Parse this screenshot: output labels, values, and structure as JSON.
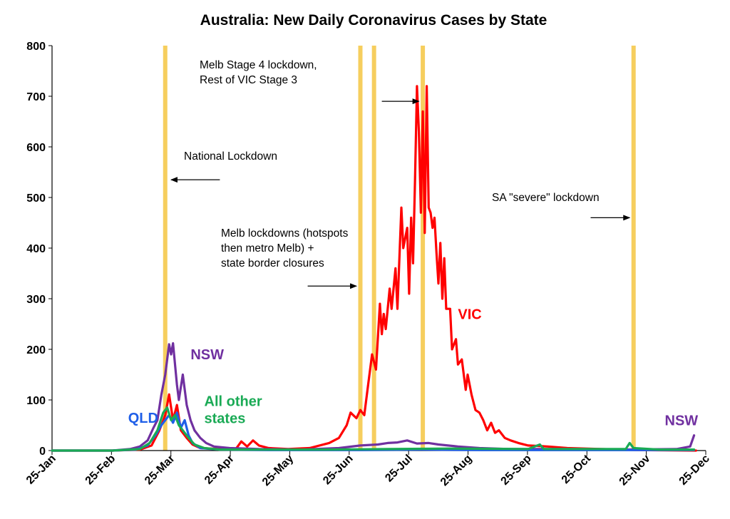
{
  "chart_data": {
    "type": "line",
    "title": "Australia: New Daily Coronavirus Cases by State",
    "ylim": [
      0,
      800
    ],
    "yticks": [
      "0",
      "100",
      "200",
      "300",
      "400",
      "500",
      "600",
      "700",
      "800"
    ],
    "x_tick_labels": [
      "25-Jan",
      "25-Feb",
      "25-Mar",
      "25-Apr",
      "25-May",
      "25-Jun",
      "25-Jul",
      "25-Aug",
      "25-Sep",
      "25-Oct",
      "25-Nov",
      "25-Dec"
    ],
    "lockdown_lines": [
      {
        "date": "2020-03-23",
        "color": "#f5c542"
      },
      {
        "date": "2020-07-01",
        "color": "#f5c542"
      },
      {
        "date": "2020-07-08",
        "color": "#f5c542"
      },
      {
        "date": "2020-08-02",
        "color": "#f5c542"
      },
      {
        "date": "2020-11-18",
        "color": "#f5c542"
      }
    ],
    "annotations": [
      {
        "text_lines": [
          "Melb Stage 4 lockdown,",
          "Rest of VIC Stage 3"
        ],
        "arrow_from": "2020-07-12",
        "arrow_to": "2020-07-31",
        "arrow_y": 690
      },
      {
        "text_lines": [
          "National Lockdown"
        ],
        "arrow_from": "2020-04-20",
        "arrow_to": "2020-03-26",
        "arrow_y": 535
      },
      {
        "text_lines": [
          "SA \"severe\" lockdown"
        ],
        "arrow_from": "2020-10-27",
        "arrow_to": "2020-11-16",
        "arrow_y": 460
      },
      {
        "text_lines": [
          "Melb lockdowns (hotspots",
          "then metro Melb) +",
          "state border closures"
        ],
        "arrow_from": "2020-06-04",
        "arrow_to": "2020-06-29",
        "arrow_y": 325
      }
    ],
    "series": [
      {
        "name": "VIC",
        "color": "#ff0000",
        "points": [
          [
            "2020-01-25",
            0
          ],
          [
            "2020-02-25",
            0
          ],
          [
            "2020-03-10",
            2
          ],
          [
            "2020-03-16",
            10
          ],
          [
            "2020-03-20",
            40
          ],
          [
            "2020-03-23",
            70
          ],
          [
            "2020-03-25",
            111
          ],
          [
            "2020-03-27",
            60
          ],
          [
            "2020-03-29",
            90
          ],
          [
            "2020-03-31",
            40
          ],
          [
            "2020-04-03",
            25
          ],
          [
            "2020-04-06",
            12
          ],
          [
            "2020-04-10",
            5
          ],
          [
            "2020-04-20",
            3
          ],
          [
            "2020-04-28",
            2
          ],
          [
            "2020-05-01",
            18
          ],
          [
            "2020-05-04",
            8
          ],
          [
            "2020-05-07",
            20
          ],
          [
            "2020-05-10",
            10
          ],
          [
            "2020-05-15",
            5
          ],
          [
            "2020-05-25",
            3
          ],
          [
            "2020-06-05",
            5
          ],
          [
            "2020-06-15",
            15
          ],
          [
            "2020-06-20",
            25
          ],
          [
            "2020-06-24",
            50
          ],
          [
            "2020-06-26",
            75
          ],
          [
            "2020-06-29",
            64
          ],
          [
            "2020-07-01",
            80
          ],
          [
            "2020-07-03",
            70
          ],
          [
            "2020-07-05",
            130
          ],
          [
            "2020-07-07",
            190
          ],
          [
            "2020-07-09",
            160
          ],
          [
            "2020-07-11",
            290
          ],
          [
            "2020-07-12",
            230
          ],
          [
            "2020-07-13",
            270
          ],
          [
            "2020-07-14",
            240
          ],
          [
            "2020-07-16",
            320
          ],
          [
            "2020-07-17",
            280
          ],
          [
            "2020-07-19",
            360
          ],
          [
            "2020-07-20",
            280
          ],
          [
            "2020-07-22",
            480
          ],
          [
            "2020-07-23",
            400
          ],
          [
            "2020-07-25",
            440
          ],
          [
            "2020-07-26",
            310
          ],
          [
            "2020-07-27",
            460
          ],
          [
            "2020-07-28",
            370
          ],
          [
            "2020-07-29",
            530
          ],
          [
            "2020-07-30",
            720
          ],
          [
            "2020-07-31",
            630
          ],
          [
            "2020-08-01",
            470
          ],
          [
            "2020-08-02",
            670
          ],
          [
            "2020-08-03",
            430
          ],
          [
            "2020-08-04",
            720
          ],
          [
            "2020-08-05",
            480
          ],
          [
            "2020-08-06",
            470
          ],
          [
            "2020-08-07",
            440
          ],
          [
            "2020-08-08",
            460
          ],
          [
            "2020-08-09",
            390
          ],
          [
            "2020-08-10",
            330
          ],
          [
            "2020-08-11",
            410
          ],
          [
            "2020-08-12",
            300
          ],
          [
            "2020-08-13",
            380
          ],
          [
            "2020-08-14",
            280
          ],
          [
            "2020-08-16",
            280
          ],
          [
            "2020-08-17",
            200
          ],
          [
            "2020-08-19",
            220
          ],
          [
            "2020-08-20",
            170
          ],
          [
            "2020-08-22",
            180
          ],
          [
            "2020-08-24",
            120
          ],
          [
            "2020-08-25",
            150
          ],
          [
            "2020-08-27",
            110
          ],
          [
            "2020-08-29",
            80
          ],
          [
            "2020-08-31",
            75
          ],
          [
            "2020-09-02",
            60
          ],
          [
            "2020-09-04",
            40
          ],
          [
            "2020-09-06",
            55
          ],
          [
            "2020-09-08",
            35
          ],
          [
            "2020-09-10",
            40
          ],
          [
            "2020-09-13",
            25
          ],
          [
            "2020-09-16",
            20
          ],
          [
            "2020-09-20",
            15
          ],
          [
            "2020-09-25",
            10
          ],
          [
            "2020-10-05",
            8
          ],
          [
            "2020-10-15",
            5
          ],
          [
            "2020-11-01",
            3
          ],
          [
            "2020-11-20",
            1
          ],
          [
            "2020-12-20",
            0
          ]
        ]
      },
      {
        "name": "NSW",
        "color": "#7030a0",
        "points": [
          [
            "2020-01-25",
            0
          ],
          [
            "2020-02-25",
            0
          ],
          [
            "2020-03-05",
            3
          ],
          [
            "2020-03-10",
            8
          ],
          [
            "2020-03-14",
            20
          ],
          [
            "2020-03-17",
            45
          ],
          [
            "2020-03-19",
            60
          ],
          [
            "2020-03-21",
            110
          ],
          [
            "2020-03-23",
            150
          ],
          [
            "2020-03-25",
            210
          ],
          [
            "2020-03-26",
            190
          ],
          [
            "2020-03-27",
            212
          ],
          [
            "2020-03-29",
            130
          ],
          [
            "2020-03-30",
            100
          ],
          [
            "2020-04-01",
            150
          ],
          [
            "2020-04-03",
            90
          ],
          [
            "2020-04-05",
            60
          ],
          [
            "2020-04-07",
            40
          ],
          [
            "2020-04-10",
            25
          ],
          [
            "2020-04-13",
            15
          ],
          [
            "2020-04-17",
            8
          ],
          [
            "2020-04-25",
            5
          ],
          [
            "2020-05-10",
            3
          ],
          [
            "2020-06-01",
            2
          ],
          [
            "2020-06-20",
            5
          ],
          [
            "2020-07-01",
            10
          ],
          [
            "2020-07-10",
            12
          ],
          [
            "2020-07-15",
            15
          ],
          [
            "2020-07-20",
            16
          ],
          [
            "2020-07-25",
            20
          ],
          [
            "2020-07-30",
            14
          ],
          [
            "2020-08-05",
            15
          ],
          [
            "2020-08-10",
            12
          ],
          [
            "2020-08-20",
            8
          ],
          [
            "2020-08-31",
            5
          ],
          [
            "2020-09-15",
            3
          ],
          [
            "2020-10-15",
            3
          ],
          [
            "2020-11-15",
            2
          ],
          [
            "2020-12-10",
            3
          ],
          [
            "2020-12-17",
            8
          ],
          [
            "2020-12-19",
            30
          ]
        ]
      },
      {
        "name": "QLD",
        "color": "#1f5fe8",
        "points": [
          [
            "2020-01-25",
            0
          ],
          [
            "2020-02-25",
            0
          ],
          [
            "2020-03-08",
            2
          ],
          [
            "2020-03-14",
            10
          ],
          [
            "2020-03-18",
            30
          ],
          [
            "2020-03-21",
            50
          ],
          [
            "2020-03-23",
            60
          ],
          [
            "2020-03-25",
            70
          ],
          [
            "2020-03-27",
            55
          ],
          [
            "2020-03-29",
            75
          ],
          [
            "2020-03-31",
            45
          ],
          [
            "2020-04-02",
            60
          ],
          [
            "2020-04-04",
            30
          ],
          [
            "2020-04-06",
            15
          ],
          [
            "2020-04-10",
            5
          ],
          [
            "2020-04-20",
            2
          ],
          [
            "2020-05-15",
            1
          ],
          [
            "2020-07-01",
            1
          ],
          [
            "2020-08-01",
            2
          ],
          [
            "2020-09-01",
            1
          ],
          [
            "2020-12-19",
            1
          ]
        ]
      },
      {
        "name": "All other states",
        "color": "#1aaa55",
        "points": [
          [
            "2020-01-25",
            0
          ],
          [
            "2020-02-25",
            0
          ],
          [
            "2020-03-10",
            3
          ],
          [
            "2020-03-15",
            15
          ],
          [
            "2020-03-19",
            40
          ],
          [
            "2020-03-22",
            75
          ],
          [
            "2020-03-24",
            85
          ],
          [
            "2020-03-26",
            60
          ],
          [
            "2020-03-28",
            70
          ],
          [
            "2020-03-30",
            50
          ],
          [
            "2020-04-01",
            40
          ],
          [
            "2020-04-04",
            25
          ],
          [
            "2020-04-07",
            12
          ],
          [
            "2020-04-12",
            5
          ],
          [
            "2020-04-20",
            2
          ],
          [
            "2020-05-15",
            2
          ],
          [
            "2020-06-15",
            2
          ],
          [
            "2020-07-15",
            3
          ],
          [
            "2020-08-15",
            4
          ],
          [
            "2020-09-25",
            3
          ],
          [
            "2020-10-01",
            12
          ],
          [
            "2020-10-03",
            3
          ],
          [
            "2020-11-14",
            3
          ],
          [
            "2020-11-16",
            15
          ],
          [
            "2020-11-18",
            5
          ],
          [
            "2020-12-01",
            2
          ],
          [
            "2020-12-19",
            2
          ]
        ]
      }
    ],
    "series_labels": [
      {
        "text": "VIC",
        "color": "#ff0000",
        "date": "2020-08-20",
        "lines": [
          "VIC"
        ],
        "y": 260
      },
      {
        "text": "NSW",
        "color": "#7030a0",
        "date": "2020-04-05",
        "lines": [
          "NSW"
        ],
        "y": 180
      },
      {
        "text": "QLD",
        "color": "#1f5fe8",
        "date": "2020-03-04",
        "lines": [
          "QLD"
        ],
        "y": 55
      },
      {
        "text": "All other states",
        "color": "#1aaa55",
        "date": "2020-04-12",
        "lines": [
          "All other",
          "states"
        ],
        "y": 88
      },
      {
        "text": "NSW",
        "color": "#7030a0",
        "date": "2020-12-04",
        "lines": [
          "NSW"
        ],
        "y": 50
      }
    ],
    "grid": false,
    "legend": "none"
  }
}
